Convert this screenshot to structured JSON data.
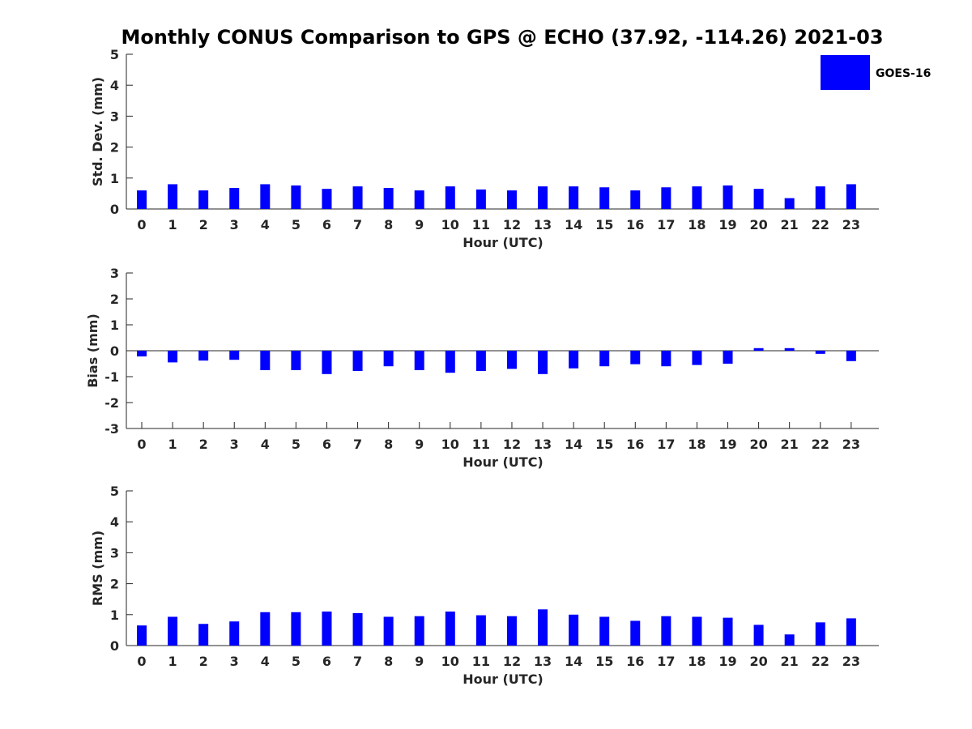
{
  "title": "Monthly CONUS Comparison to GPS @ ECHO (37.92, -114.26) 2021-03",
  "legend": {
    "label": "GOES-16",
    "color": "#0000ff"
  },
  "chart_data": [
    {
      "type": "bar",
      "categories": [
        "0",
        "1",
        "2",
        "3",
        "4",
        "5",
        "6",
        "7",
        "8",
        "9",
        "10",
        "11",
        "12",
        "13",
        "14",
        "15",
        "16",
        "17",
        "18",
        "19",
        "20",
        "21",
        "22",
        "23"
      ],
      "series": [
        {
          "name": "GOES-16",
          "values": [
            0.6,
            0.8,
            0.6,
            0.68,
            0.8,
            0.76,
            0.65,
            0.73,
            0.68,
            0.6,
            0.73,
            0.63,
            0.6,
            0.73,
            0.73,
            0.7,
            0.6,
            0.7,
            0.73,
            0.76,
            0.65,
            0.35,
            0.73,
            0.8
          ]
        }
      ],
      "xlabel": "Hour (UTC)",
      "ylabel": "Std. Dev. (mm)",
      "ylim": [
        0,
        5
      ],
      "yticks": [
        0,
        1,
        2,
        3,
        4,
        5
      ],
      "color": "#0000ff",
      "grid": false
    },
    {
      "type": "bar",
      "categories": [
        "0",
        "1",
        "2",
        "3",
        "4",
        "5",
        "6",
        "7",
        "8",
        "9",
        "10",
        "11",
        "12",
        "13",
        "14",
        "15",
        "16",
        "17",
        "18",
        "19",
        "20",
        "21",
        "22",
        "23"
      ],
      "series": [
        {
          "name": "GOES-16",
          "values": [
            -0.22,
            -0.45,
            -0.38,
            -0.35,
            -0.75,
            -0.75,
            -0.9,
            -0.78,
            -0.6,
            -0.75,
            -0.85,
            -0.78,
            -0.7,
            -0.9,
            -0.68,
            -0.6,
            -0.52,
            -0.6,
            -0.55,
            -0.5,
            0.1,
            0.1,
            -0.12,
            -0.4
          ]
        }
      ],
      "xlabel": "Hour (UTC)",
      "ylabel": "Bias (mm)",
      "ylim": [
        -3,
        3
      ],
      "yticks": [
        -3,
        -2,
        -1,
        0,
        1,
        2,
        3
      ],
      "color": "#0000ff",
      "grid": false
    },
    {
      "type": "bar",
      "categories": [
        "0",
        "1",
        "2",
        "3",
        "4",
        "5",
        "6",
        "7",
        "8",
        "9",
        "10",
        "11",
        "12",
        "13",
        "14",
        "15",
        "16",
        "17",
        "18",
        "19",
        "20",
        "21",
        "22",
        "23"
      ],
      "series": [
        {
          "name": "GOES-16",
          "values": [
            0.65,
            0.93,
            0.7,
            0.78,
            1.08,
            1.08,
            1.1,
            1.05,
            0.93,
            0.95,
            1.1,
            0.98,
            0.95,
            1.17,
            1.0,
            0.93,
            0.8,
            0.95,
            0.93,
            0.9,
            0.67,
            0.36,
            0.75,
            0.88
          ]
        }
      ],
      "xlabel": "Hour (UTC)",
      "ylabel": "RMS (mm)",
      "ylim": [
        0,
        5
      ],
      "yticks": [
        0,
        1,
        2,
        3,
        4,
        5
      ],
      "color": "#0000ff",
      "grid": false
    }
  ]
}
